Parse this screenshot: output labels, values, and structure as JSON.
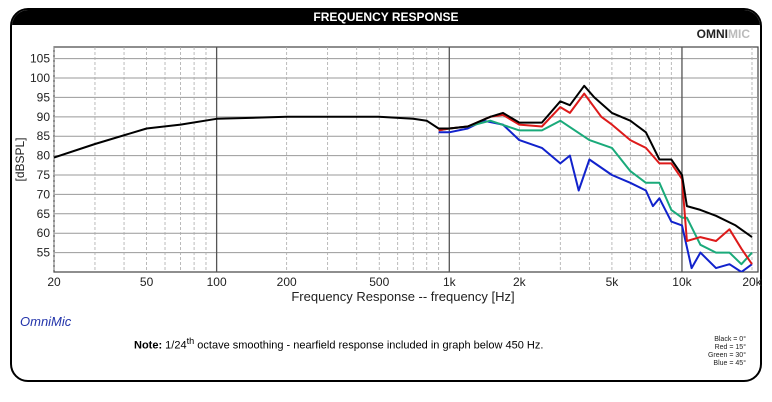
{
  "header": {
    "title": "FREQUENCY RESPONSE",
    "brand_bold": "OMNI",
    "brand_light": "MIC"
  },
  "footer": {
    "app": "OmniMic",
    "note_label": "Note:",
    "note_pre": " 1/24",
    "note_sup": "th",
    "note_post": " octave smoothing - nearfield response included in graph below 450 Hz.",
    "legend": [
      "Black = 0°",
      "Red = 15°",
      "Green = 30°",
      "Blue = 45°"
    ]
  },
  "chart_data": {
    "type": "line",
    "title": "FREQUENCY RESPONSE",
    "xlabel": "Frequency Response -- frequency [Hz]",
    "ylabel": "[dBSPL]",
    "xscale": "log",
    "xlim": [
      20,
      20000
    ],
    "ylim": [
      50,
      108
    ],
    "grid": true,
    "xticks": [
      20,
      50,
      100,
      200,
      500,
      1000,
      2000,
      5000,
      10000,
      20000
    ],
    "xtick_labels": [
      "20",
      "50",
      "100",
      "200",
      "500",
      "1k",
      "2k",
      "5k",
      "10k",
      "20k"
    ],
    "yticks": [
      55,
      60,
      65,
      70,
      75,
      80,
      85,
      90,
      95,
      100,
      105
    ],
    "series": [
      {
        "name": "Black = 0°",
        "color": "#000000",
        "x": [
          20,
          30,
          50,
          70,
          100,
          200,
          300,
          500,
          700,
          800,
          900,
          1000,
          1200,
          1500,
          1700,
          2000,
          2500,
          3000,
          3300,
          3800,
          4200,
          5000,
          6000,
          7000,
          8000,
          9000,
          10000,
          10500,
          12000,
          14000,
          17000,
          20000
        ],
        "y": [
          79.5,
          83,
          87,
          88,
          89.5,
          90,
          90,
          90,
          89.5,
          89,
          87,
          87,
          87.5,
          90,
          91,
          88.5,
          88.5,
          94,
          93,
          98,
          95,
          91,
          89,
          86,
          79,
          79,
          75,
          67,
          66,
          64.5,
          62,
          59
        ]
      },
      {
        "name": "Red = 15°",
        "color": "#dd1a1a",
        "x": [
          900,
          1000,
          1200,
          1500,
          1700,
          2000,
          2500,
          3000,
          3300,
          3800,
          4500,
          5000,
          6000,
          7000,
          8000,
          9000,
          10000,
          10500,
          12000,
          14000,
          16000,
          18000,
          20000
        ],
        "y": [
          86.5,
          87,
          87.5,
          90,
          90.5,
          88,
          87.5,
          92.5,
          91,
          96,
          90,
          88,
          84,
          82,
          78,
          78,
          74,
          58,
          59,
          58,
          61,
          56,
          52
        ]
      },
      {
        "name": "Green = 30°",
        "color": "#1aaa7a",
        "x": [
          900,
          1000,
          1200,
          1500,
          2000,
          2500,
          3000,
          4000,
          5000,
          6000,
          7000,
          8000,
          9000,
          10000,
          10500,
          12000,
          14000,
          16000,
          18000,
          20000
        ],
        "y": [
          86.5,
          87,
          87.5,
          89,
          86.5,
          86.5,
          89,
          84,
          82,
          76,
          73,
          73,
          66,
          64,
          64,
          57,
          55,
          55,
          52,
          55
        ]
      },
      {
        "name": "Blue = 45°",
        "color": "#1122cc",
        "x": [
          900,
          1000,
          1200,
          1400,
          1700,
          2000,
          2500,
          3000,
          3300,
          3600,
          4000,
          5000,
          6000,
          7000,
          7500,
          8000,
          9000,
          10000,
          11000,
          12000,
          14000,
          16000,
          18000,
          20000
        ],
        "y": [
          86,
          86,
          87,
          89,
          88,
          84,
          82,
          78,
          80,
          71,
          79,
          75,
          73,
          71,
          67,
          69,
          63,
          62,
          51,
          55,
          51,
          52,
          50,
          52
        ]
      }
    ]
  }
}
